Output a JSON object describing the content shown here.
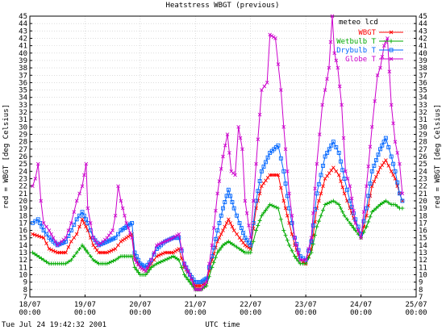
{
  "chart_data": {
    "type": "line",
    "title": "Heatstress WBGT (previous)",
    "xlabel": "UTC time",
    "ylabel_left": "red = WBGT [deg Celsius]",
    "ylabel_right": "red = WBGT [deg Celsius]",
    "ylim": [
      7,
      45
    ],
    "y_ticks": [
      7,
      8,
      9,
      10,
      11,
      12,
      13,
      14,
      15,
      16,
      17,
      18,
      19,
      20,
      21,
      22,
      23,
      24,
      25,
      26,
      27,
      28,
      29,
      30,
      31,
      32,
      33,
      34,
      35,
      36,
      37,
      38,
      39,
      40,
      41,
      42,
      43,
      44,
      45
    ],
    "xlim": [
      0,
      7
    ],
    "x_ticks": [
      {
        "x": 0,
        "line1": "18/07",
        "line2": "00:00"
      },
      {
        "x": 1,
        "line1": "19/07",
        "line2": "00:00"
      },
      {
        "x": 2,
        "line1": "20/07",
        "line2": "00:00"
      },
      {
        "x": 3,
        "line1": "21/07",
        "line2": "00:00"
      },
      {
        "x": 4,
        "line1": "22/07",
        "line2": "00:00"
      },
      {
        "x": 5,
        "line1": "23/07",
        "line2": "00:00"
      },
      {
        "x": 6,
        "line1": "24/07",
        "line2": "00:00"
      },
      {
        "x": 7,
        "line1": "25/07",
        "line2": "00:00"
      }
    ],
    "grid": true,
    "legend_title": "meteo lcd",
    "legend_position": "top-right",
    "timestamp": "Tue Jul 24 19:42:32 2001",
    "series": [
      {
        "name": "WBGT",
        "color": "#ff0000",
        "marker": "x",
        "points": [
          [
            0.05,
            15.5
          ],
          [
            0.25,
            15
          ],
          [
            0.35,
            13.5
          ],
          [
            0.5,
            13
          ],
          [
            0.65,
            13
          ],
          [
            0.75,
            14.5
          ],
          [
            0.85,
            15.5
          ],
          [
            0.95,
            17.5
          ],
          [
            1.05,
            16
          ],
          [
            1.15,
            14
          ],
          [
            1.25,
            13
          ],
          [
            1.4,
            13
          ],
          [
            1.55,
            13.5
          ],
          [
            1.65,
            14.5
          ],
          [
            1.75,
            15
          ],
          [
            1.85,
            15.5
          ],
          [
            1.9,
            12.5
          ],
          [
            2.0,
            11
          ],
          [
            2.1,
            10.5
          ],
          [
            2.2,
            11.5
          ],
          [
            2.3,
            12.5
          ],
          [
            2.45,
            13
          ],
          [
            2.6,
            13
          ],
          [
            2.7,
            13.5
          ],
          [
            2.8,
            11
          ],
          [
            2.9,
            10
          ],
          [
            3.0,
            8.5
          ],
          [
            3.1,
            8.5
          ],
          [
            3.2,
            9
          ],
          [
            3.3,
            12
          ],
          [
            3.4,
            14.5
          ],
          [
            3.5,
            16
          ],
          [
            3.6,
            17.5
          ],
          [
            3.7,
            16
          ],
          [
            3.8,
            15
          ],
          [
            3.9,
            14
          ],
          [
            4.0,
            13.5
          ],
          [
            4.1,
            19
          ],
          [
            4.2,
            22
          ],
          [
            4.35,
            23.5
          ],
          [
            4.5,
            23.5
          ],
          [
            4.6,
            20
          ],
          [
            4.7,
            17
          ],
          [
            4.8,
            14
          ],
          [
            4.9,
            12
          ],
          [
            5.0,
            11.5
          ],
          [
            5.1,
            13.5
          ],
          [
            5.2,
            19
          ],
          [
            5.35,
            23
          ],
          [
            5.5,
            24.5
          ],
          [
            5.6,
            23.5
          ],
          [
            5.7,
            21
          ],
          [
            5.8,
            19
          ],
          [
            5.9,
            17
          ],
          [
            6.0,
            15
          ],
          [
            6.1,
            18
          ],
          [
            6.2,
            22
          ],
          [
            6.35,
            24.5
          ],
          [
            6.45,
            25.5
          ],
          [
            6.55,
            24
          ],
          [
            6.62,
            23
          ],
          [
            6.7,
            21
          ],
          [
            6.75,
            20
          ]
        ]
      },
      {
        "name": "Wetbulb T",
        "color": "#00aa00",
        "marker": "+",
        "points": [
          [
            0.05,
            13
          ],
          [
            0.25,
            12
          ],
          [
            0.35,
            11.5
          ],
          [
            0.5,
            11.5
          ],
          [
            0.65,
            11.5
          ],
          [
            0.75,
            12
          ],
          [
            0.85,
            13
          ],
          [
            0.95,
            14
          ],
          [
            1.05,
            13
          ],
          [
            1.15,
            12
          ],
          [
            1.25,
            11.5
          ],
          [
            1.4,
            11.5
          ],
          [
            1.55,
            12
          ],
          [
            1.65,
            12.5
          ],
          [
            1.75,
            12.5
          ],
          [
            1.85,
            12.5
          ],
          [
            1.9,
            11
          ],
          [
            2.0,
            10
          ],
          [
            2.1,
            10
          ],
          [
            2.2,
            11
          ],
          [
            2.3,
            11.5
          ],
          [
            2.45,
            12
          ],
          [
            2.6,
            12.5
          ],
          [
            2.7,
            12
          ],
          [
            2.8,
            10
          ],
          [
            2.9,
            9
          ],
          [
            3.0,
            8
          ],
          [
            3.1,
            8
          ],
          [
            3.2,
            8.5
          ],
          [
            3.3,
            11
          ],
          [
            3.4,
            13
          ],
          [
            3.5,
            14
          ],
          [
            3.6,
            14.5
          ],
          [
            3.7,
            14
          ],
          [
            3.8,
            13.5
          ],
          [
            3.9,
            13
          ],
          [
            4.0,
            13
          ],
          [
            4.1,
            16
          ],
          [
            4.2,
            18
          ],
          [
            4.35,
            19.5
          ],
          [
            4.5,
            19
          ],
          [
            4.6,
            16
          ],
          [
            4.7,
            14
          ],
          [
            4.8,
            12.5
          ],
          [
            4.9,
            11.5
          ],
          [
            5.0,
            11.5
          ],
          [
            5.1,
            13
          ],
          [
            5.2,
            16.5
          ],
          [
            5.35,
            19.5
          ],
          [
            5.5,
            20
          ],
          [
            5.6,
            19.5
          ],
          [
            5.7,
            18
          ],
          [
            5.8,
            17
          ],
          [
            5.9,
            16
          ],
          [
            6.0,
            15
          ],
          [
            6.1,
            16.5
          ],
          [
            6.2,
            18.5
          ],
          [
            6.35,
            19.5
          ],
          [
            6.45,
            20
          ],
          [
            6.55,
            19.5
          ],
          [
            6.62,
            19.5
          ],
          [
            6.7,
            19
          ],
          [
            6.75,
            19
          ]
        ]
      },
      {
        "name": "Drybulb T",
        "color": "#0066ff",
        "marker": "square",
        "points": [
          [
            0.05,
            17
          ],
          [
            0.15,
            17.5
          ],
          [
            0.25,
            16
          ],
          [
            0.35,
            15
          ],
          [
            0.5,
            14
          ],
          [
            0.65,
            14.5
          ],
          [
            0.75,
            16
          ],
          [
            0.85,
            17.5
          ],
          [
            0.95,
            18.5
          ],
          [
            1.05,
            17
          ],
          [
            1.15,
            15
          ],
          [
            1.25,
            14
          ],
          [
            1.4,
            14.5
          ],
          [
            1.55,
            15
          ],
          [
            1.65,
            16
          ],
          [
            1.75,
            16.5
          ],
          [
            1.85,
            17
          ],
          [
            1.9,
            13
          ],
          [
            2.0,
            11.5
          ],
          [
            2.1,
            11
          ],
          [
            2.2,
            12
          ],
          [
            2.3,
            13.5
          ],
          [
            2.45,
            14.5
          ],
          [
            2.6,
            15
          ],
          [
            2.7,
            15
          ],
          [
            2.8,
            11.5
          ],
          [
            2.9,
            10
          ],
          [
            3.0,
            9
          ],
          [
            3.1,
            9
          ],
          [
            3.2,
            9.5
          ],
          [
            3.3,
            12.5
          ],
          [
            3.4,
            16
          ],
          [
            3.5,
            19
          ],
          [
            3.6,
            21.5
          ],
          [
            3.7,
            19
          ],
          [
            3.8,
            17
          ],
          [
            3.9,
            15
          ],
          [
            4.0,
            14
          ],
          [
            4.1,
            20
          ],
          [
            4.2,
            24
          ],
          [
            4.35,
            26.5
          ],
          [
            4.5,
            27.5
          ],
          [
            4.6,
            24
          ],
          [
            4.7,
            19
          ],
          [
            4.8,
            15
          ],
          [
            4.9,
            12.5
          ],
          [
            5.0,
            12
          ],
          [
            5.1,
            14.5
          ],
          [
            5.2,
            21
          ],
          [
            5.35,
            26
          ],
          [
            5.5,
            28
          ],
          [
            5.6,
            26.5
          ],
          [
            5.7,
            23
          ],
          [
            5.8,
            20
          ],
          [
            5.9,
            17.5
          ],
          [
            6.0,
            15.5
          ],
          [
            6.1,
            19
          ],
          [
            6.2,
            24
          ],
          [
            6.35,
            27
          ],
          [
            6.45,
            28.5
          ],
          [
            6.55,
            26
          ],
          [
            6.62,
            24
          ],
          [
            6.7,
            21
          ],
          [
            6.75,
            20
          ]
        ]
      },
      {
        "name": "Globe T",
        "color": "#cc00cc",
        "marker": "x",
        "points": [
          [
            0.05,
            22
          ],
          [
            0.1,
            23
          ],
          [
            0.15,
            25
          ],
          [
            0.2,
            20
          ],
          [
            0.25,
            17
          ],
          [
            0.35,
            16
          ],
          [
            0.5,
            14
          ],
          [
            0.65,
            15
          ],
          [
            0.75,
            17
          ],
          [
            0.85,
            20
          ],
          [
            0.95,
            22
          ],
          [
            1.02,
            25
          ],
          [
            1.05,
            19
          ],
          [
            1.1,
            17
          ],
          [
            1.15,
            15
          ],
          [
            1.25,
            14
          ],
          [
            1.4,
            15
          ],
          [
            1.5,
            16
          ],
          [
            1.55,
            18
          ],
          [
            1.6,
            22
          ],
          [
            1.65,
            20
          ],
          [
            1.75,
            17
          ],
          [
            1.85,
            15
          ],
          [
            1.9,
            12
          ],
          [
            2.0,
            11
          ],
          [
            2.1,
            10.5
          ],
          [
            2.2,
            12
          ],
          [
            2.3,
            14
          ],
          [
            2.45,
            14.5
          ],
          [
            2.6,
            15
          ],
          [
            2.7,
            15.5
          ],
          [
            2.8,
            11.5
          ],
          [
            2.9,
            10
          ],
          [
            3.0,
            8
          ],
          [
            3.1,
            8
          ],
          [
            3.2,
            9
          ],
          [
            3.3,
            14
          ],
          [
            3.4,
            21
          ],
          [
            3.5,
            26
          ],
          [
            3.58,
            29
          ],
          [
            3.65,
            24
          ],
          [
            3.72,
            23.5
          ],
          [
            3.78,
            30
          ],
          [
            3.85,
            27
          ],
          [
            3.9,
            20
          ],
          [
            4.0,
            15
          ],
          [
            4.1,
            25
          ],
          [
            4.2,
            35
          ],
          [
            4.3,
            36
          ],
          [
            4.35,
            42.5
          ],
          [
            4.45,
            42
          ],
          [
            4.55,
            35
          ],
          [
            4.6,
            30
          ],
          [
            4.7,
            21
          ],
          [
            4.8,
            15
          ],
          [
            4.9,
            12
          ],
          [
            5.0,
            12
          ],
          [
            5.1,
            15
          ],
          [
            5.2,
            25
          ],
          [
            5.3,
            33
          ],
          [
            5.35,
            35
          ],
          [
            5.42,
            38
          ],
          [
            5.48,
            45
          ],
          [
            5.52,
            40
          ],
          [
            5.58,
            38
          ],
          [
            5.65,
            33
          ],
          [
            5.72,
            24
          ],
          [
            5.8,
            22
          ],
          [
            5.9,
            17
          ],
          [
            6.0,
            15
          ],
          [
            6.1,
            22
          ],
          [
            6.2,
            30
          ],
          [
            6.3,
            37
          ],
          [
            6.35,
            38
          ],
          [
            6.42,
            41
          ],
          [
            6.48,
            42
          ],
          [
            6.55,
            33
          ],
          [
            6.62,
            28
          ],
          [
            6.7,
            25
          ],
          [
            6.75,
            21
          ]
        ]
      }
    ]
  }
}
